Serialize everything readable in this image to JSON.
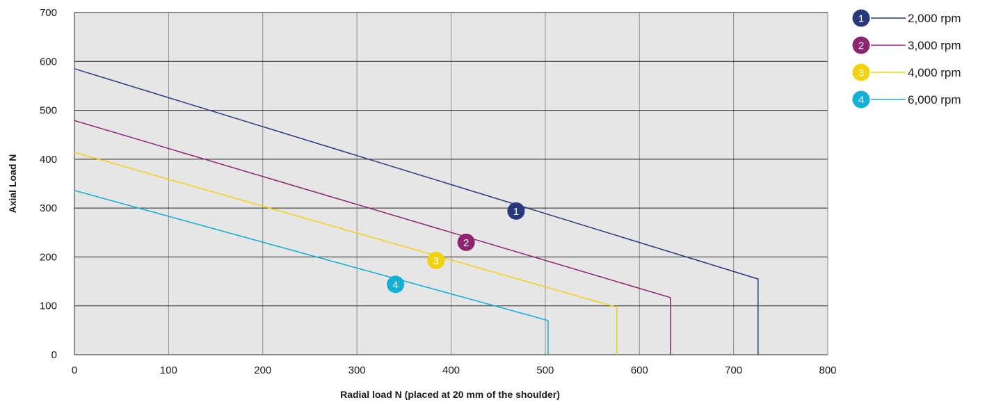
{
  "chart_data": {
    "type": "line",
    "xlabel": "Radial load N (placed at 20 mm of the shoulder)",
    "ylabel": "Axial Load N",
    "xlim": [
      0,
      800
    ],
    "ylim": [
      0,
      700
    ],
    "x_ticks": [
      "0",
      "100",
      "200",
      "300",
      "400",
      "500",
      "600",
      "700",
      "800"
    ],
    "y_ticks": [
      "0",
      "100",
      "200",
      "300",
      "400",
      "500",
      "600",
      "700"
    ],
    "grid": true,
    "plot_background": "#e6e6e6",
    "legend_position": "right",
    "series": [
      {
        "id": "1",
        "name": "2,000 rpm",
        "color": "#27397a",
        "points": [
          [
            0,
            585
          ],
          [
            726,
            155
          ],
          [
            726,
            0
          ]
        ],
        "marker": [
          469,
          294
        ]
      },
      {
        "id": "2",
        "name": "3,000 rpm",
        "color": "#8e2370",
        "points": [
          [
            0,
            479
          ],
          [
            633,
            117
          ],
          [
            633,
            0
          ]
        ],
        "marker": [
          416,
          230
        ]
      },
      {
        "id": "3",
        "name": "4,000 rpm",
        "color": "#f2d20f",
        "points": [
          [
            0,
            414
          ],
          [
            576,
            97
          ],
          [
            576,
            0
          ]
        ],
        "marker": [
          384,
          193
        ]
      },
      {
        "id": "4",
        "name": "6,000 rpm",
        "color": "#11b0d6",
        "points": [
          [
            0,
            336
          ],
          [
            503,
            70
          ],
          [
            503,
            0
          ]
        ],
        "marker": [
          341,
          144
        ]
      }
    ]
  }
}
